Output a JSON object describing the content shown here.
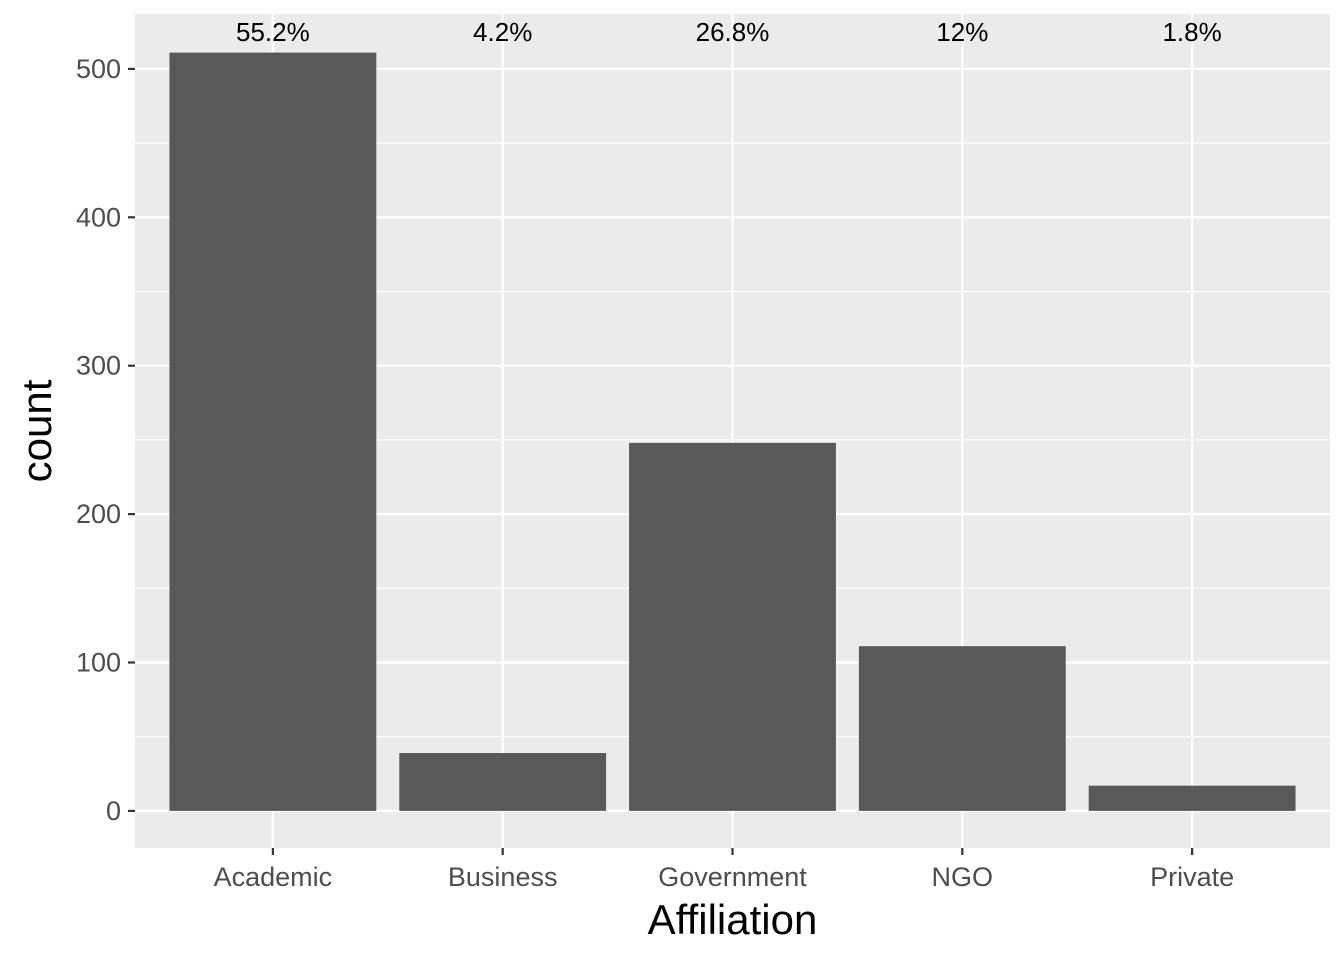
{
  "chart_data": {
    "type": "bar",
    "categories": [
      "Academic",
      "Business",
      "Government",
      "NGO",
      "Private"
    ],
    "values": [
      511,
      39,
      248,
      111,
      17
    ],
    "data_labels": [
      "55.2%",
      "4.2%",
      "26.8%",
      "12%",
      "1.8%"
    ],
    "title": "",
    "xlabel": "Affiliation",
    "ylabel": "count",
    "ylim": [
      -25,
      537
    ],
    "yticks": [
      0,
      100,
      200,
      300,
      400,
      500
    ],
    "ytick_labels": [
      "0",
      "100",
      "200",
      "300",
      "400",
      "500"
    ],
    "grid": true,
    "legend": "none",
    "colors": {
      "bar": "#595959",
      "panel": "#ebebeb",
      "grid": "#ffffff",
      "tick_text": "#4d4d4d",
      "label_text": "#000000"
    }
  }
}
